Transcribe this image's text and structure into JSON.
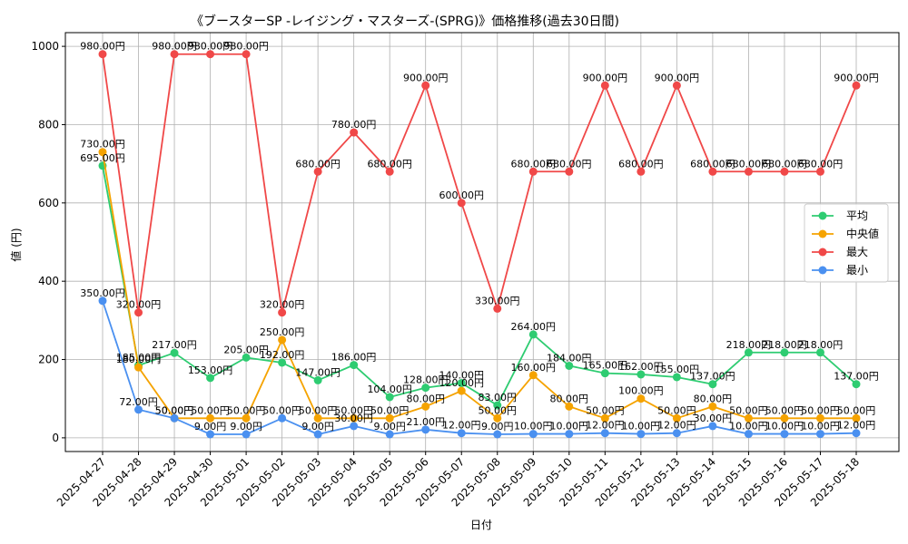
{
  "chart_data": {
    "type": "line",
    "title": "《ブースターSP -レイジング・マスターズ-(SPRG)》価格推移(過去30日間)",
    "xlabel": "日付",
    "ylabel": "値 (円)",
    "ylim": [
      -35,
      1035
    ],
    "yticks": [
      0,
      200,
      400,
      600,
      800,
      1000
    ],
    "grid": true,
    "legend_position": "right",
    "value_suffix": "円",
    "categories": [
      "2025-04-27",
      "2025-04-28",
      "2025-04-29",
      "2025-04-30",
      "2025-05-01",
      "2025-05-02",
      "2025-05-03",
      "2025-05-04",
      "2025-05-05",
      "2025-05-06",
      "2025-05-07",
      "2025-05-08",
      "2025-05-09",
      "2025-05-10",
      "2025-05-11",
      "2025-05-12",
      "2025-05-13",
      "2025-05-14",
      "2025-05-15",
      "2025-05-16",
      "2025-05-17",
      "2025-05-18"
    ],
    "series": [
      {
        "name": "平均",
        "color": "#2ecc71",
        "values": [
          695,
          185,
          217,
          153,
          205,
          192,
          147,
          186,
          104,
          128,
          140,
          83,
          264,
          184,
          165,
          162,
          155,
          137,
          218,
          218,
          218,
          137
        ]
      },
      {
        "name": "中央値",
        "color": "#f5a300",
        "values": [
          730,
          180,
          50,
          50,
          50,
          250,
          50,
          50,
          50,
          80,
          120,
          50,
          160,
          80,
          50,
          100,
          50,
          80,
          50,
          50,
          50,
          50
        ]
      },
      {
        "name": "最大",
        "color": "#f04848",
        "values": [
          980,
          320,
          980,
          980,
          980,
          320,
          680,
          780,
          680,
          900,
          600,
          330,
          680,
          680,
          900,
          680,
          900,
          680,
          680,
          680,
          680,
          900
        ]
      },
      {
        "name": "最小",
        "color": "#4a90f0",
        "values": [
          350,
          72,
          50,
          9,
          9,
          50,
          9,
          30,
          9,
          21,
          12,
          9,
          10,
          10,
          12,
          10,
          12,
          30,
          10,
          10,
          10,
          12
        ]
      }
    ]
  }
}
